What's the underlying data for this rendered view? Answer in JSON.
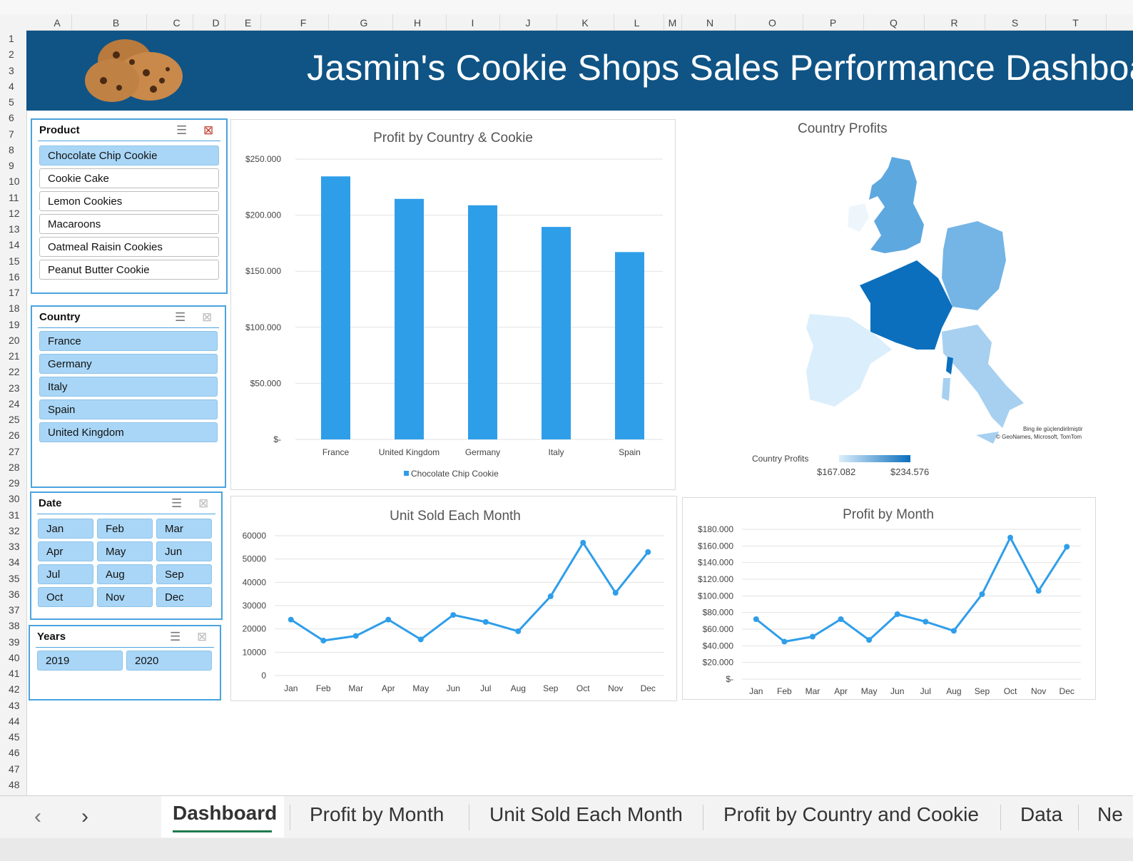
{
  "title": "Jasmin's Cookie Shops Sales Performance Dashboard",
  "columns": [
    "A",
    "B",
    "C",
    "D",
    "E",
    "F",
    "G",
    "H",
    "I",
    "J",
    "K",
    "L",
    "M",
    "N",
    "O",
    "P",
    "Q",
    "R",
    "S",
    "T"
  ],
  "rows": [
    "1",
    "2",
    "3",
    "4",
    "5",
    "6",
    "7",
    "8",
    "9",
    "10",
    "11",
    "12",
    "13",
    "14",
    "15",
    "16",
    "17",
    "18",
    "19",
    "20",
    "21",
    "22",
    "23",
    "24",
    "25",
    "26",
    "27",
    "28",
    "29",
    "30",
    "31",
    "32",
    "33",
    "34",
    "35",
    "36",
    "37",
    "38",
    "39",
    "40",
    "41",
    "42",
    "43",
    "44",
    "45",
    "46",
    "47",
    "48"
  ],
  "slicers": {
    "product": {
      "label": "Product",
      "items": [
        "Chocolate Chip Cookie",
        "Cookie Cake",
        "Lemon Cookies",
        "Macaroons",
        "Oatmeal Raisin Cookies",
        "Peanut Butter Cookie"
      ],
      "selected": [
        "Chocolate Chip Cookie"
      ]
    },
    "country": {
      "label": "Country",
      "items": [
        "France",
        "Germany",
        "Italy",
        "Spain",
        "United Kingdom"
      ],
      "selected": [
        "France",
        "Germany",
        "Italy",
        "Spain",
        "United Kingdom"
      ]
    },
    "date": {
      "label": "Date",
      "items": [
        "Jan",
        "Feb",
        "Mar",
        "Apr",
        "May",
        "Jun",
        "Jul",
        "Aug",
        "Sep",
        "Oct",
        "Nov",
        "Dec"
      ],
      "selected": [
        "Jan",
        "Feb",
        "Mar",
        "Apr",
        "May",
        "Jun",
        "Jul",
        "Aug",
        "Sep",
        "Oct",
        "Nov",
        "Dec"
      ]
    },
    "years": {
      "label": "Years",
      "items": [
        "2019",
        "2020"
      ],
      "selected": [
        "2019",
        "2020"
      ]
    }
  },
  "map": {
    "title": "Country Profits",
    "legend_label": "Country Profits",
    "legend_min": "$167.082",
    "legend_max": "$234.576",
    "attribution_1": "Bing ile güçlendirilmiştir",
    "attribution_2": "© GeoNames, Microsoft, TomTom",
    "color_light": "#dbeefb",
    "color_dark": "#0b6fbd"
  },
  "chart_data": [
    {
      "type": "bar",
      "title": "Profit by Country & Cookie",
      "categories": [
        "France",
        "United Kingdom",
        "Germany",
        "Italy",
        "Spain"
      ],
      "series": [
        {
          "name": "Chocolate Chip Cookie",
          "values": [
            234576,
            214500,
            208800,
            189500,
            167082
          ]
        }
      ],
      "ylim": [
        0,
        250000
      ],
      "yticks": [
        "$-",
        "$50.000",
        "$100.000",
        "$150.000",
        "$200.000",
        "$250.000"
      ],
      "legend": "bottom",
      "color": "#2f9ee9"
    },
    {
      "type": "line",
      "title": "Unit Sold Each Month",
      "categories": [
        "Jan",
        "Feb",
        "Mar",
        "Apr",
        "May",
        "Jun",
        "Jul",
        "Aug",
        "Sep",
        "Oct",
        "Nov",
        "Dec"
      ],
      "values": [
        24000,
        15000,
        17000,
        24000,
        15500,
        26000,
        23000,
        19000,
        34000,
        57000,
        35500,
        53000
      ],
      "ylim": [
        0,
        60000
      ],
      "yticks": [
        "0",
        "10000",
        "20000",
        "30000",
        "40000",
        "50000",
        "60000"
      ],
      "color": "#2f9ee9"
    },
    {
      "type": "line",
      "title": "Profit by Month",
      "categories": [
        "Jan",
        "Feb",
        "Mar",
        "Apr",
        "May",
        "Jun",
        "Jul",
        "Aug",
        "Sep",
        "Oct",
        "Nov",
        "Dec"
      ],
      "values": [
        72000,
        45000,
        51000,
        72000,
        47000,
        78000,
        69000,
        58000,
        102000,
        170000,
        106000,
        159000
      ],
      "ylim": [
        0,
        180000
      ],
      "yticks": [
        "$-",
        "$20.000",
        "$40.000",
        "$60.000",
        "$80.000",
        "$100.000",
        "$120.000",
        "$140.000",
        "$160.000",
        "$180.000"
      ],
      "color": "#2f9ee9"
    }
  ],
  "tabs": [
    "Dashboard",
    "Profit by Month",
    "Unit Sold Each Month",
    "Profit by Country and Cookie",
    "Data",
    "Ne"
  ],
  "active_tab": "Dashboard",
  "nav": {
    "prev": "‹",
    "next": "›"
  }
}
